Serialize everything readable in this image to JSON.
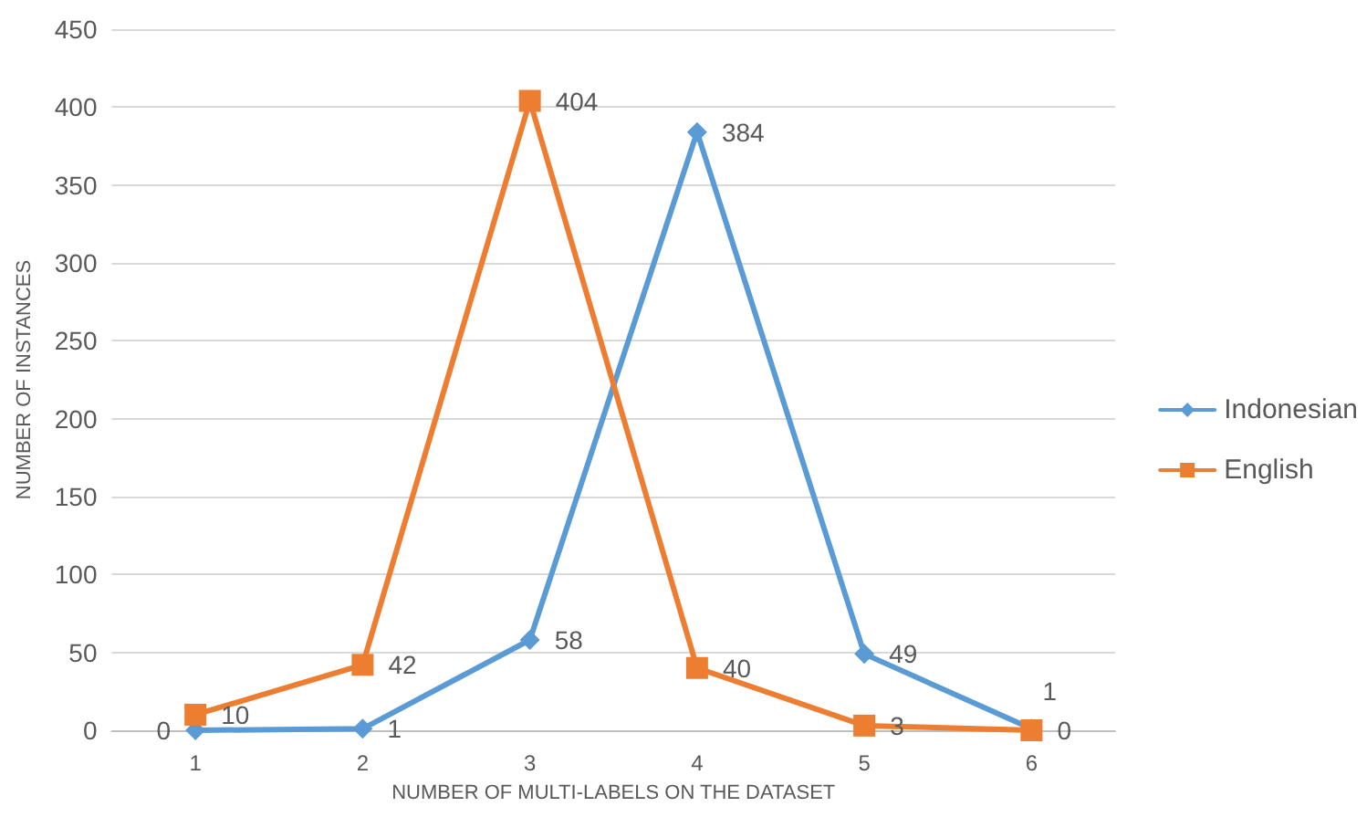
{
  "chart_data": {
    "type": "line",
    "xlabel": "NUMBER OF MULTI-LABELS ON THE DATASET",
    "ylabel": "NUMBER OF INSTANCES",
    "categories": [
      "1",
      "2",
      "3",
      "4",
      "5",
      "6"
    ],
    "series": [
      {
        "name": "Indonesian",
        "color": "#5b9bd5",
        "marker": "diamond",
        "values": [
          0,
          1,
          58,
          384,
          49,
          1
        ]
      },
      {
        "name": "English",
        "color": "#ed7d31",
        "marker": "square",
        "values": [
          10,
          42,
          404,
          40,
          3,
          0
        ]
      }
    ],
    "ylim": [
      0,
      450
    ],
    "yticks": [
      0,
      50,
      100,
      150,
      200,
      250,
      300,
      350,
      400,
      450
    ],
    "grid": "y",
    "legend": "right",
    "data_labels": true,
    "line_style": "solid"
  }
}
